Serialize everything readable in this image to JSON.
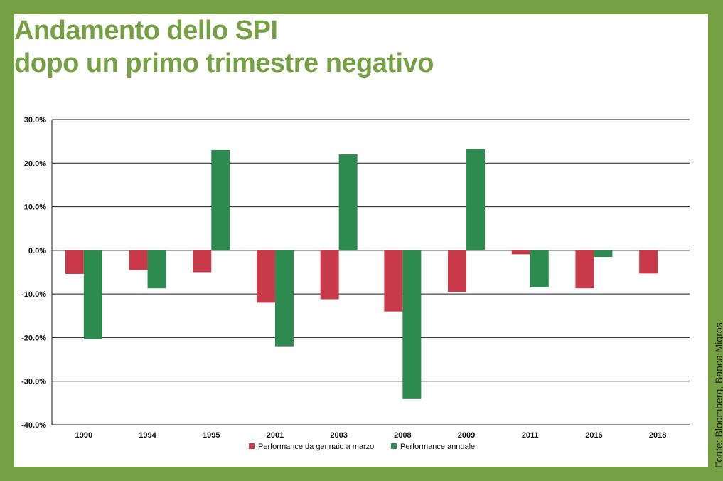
{
  "title_lines": [
    "Andamento dello SPI",
    "dopo un primo trimestre negativo"
  ],
  "source": "Fonte: Bloomberg, Banca Migros",
  "colors": {
    "background": "#75a043",
    "panel": "#ffffff",
    "series1": "#c8394a",
    "series2": "#2e8b4f"
  },
  "chart_data": {
    "type": "bar",
    "categories": [
      "1990",
      "1994",
      "1995",
      "2001",
      "2003",
      "2008",
      "2009",
      "2011",
      "2016",
      "2018"
    ],
    "series": [
      {
        "name": "Performance da gennaio a marzo",
        "values": [
          -5.4,
          -4.5,
          -5.0,
          -12.0,
          -11.2,
          -14.0,
          -9.5,
          -0.9,
          -8.7,
          -5.3
        ]
      },
      {
        "name": "Performance annuale",
        "values": [
          -20.3,
          -8.7,
          23.0,
          -22.0,
          22.0,
          -34.1,
          23.2,
          -8.5,
          -1.5,
          null
        ]
      }
    ],
    "ylim": [
      -40,
      30
    ],
    "yticks": [
      "30.0%",
      "20.0%",
      "10.0%",
      "0.0%",
      "-10.0%",
      "-20.0%",
      "-30.0%",
      "-40.0%"
    ],
    "grid": true,
    "legend_position": "bottom-center",
    "xlabel": "",
    "ylabel": ""
  }
}
